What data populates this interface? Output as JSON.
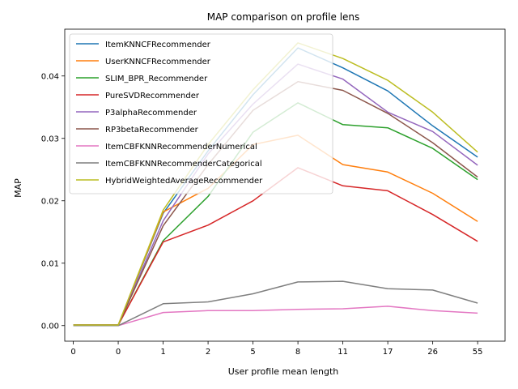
{
  "chart_data": {
    "type": "line",
    "title": "MAP comparison on profile lens",
    "xlabel": "User profile mean length",
    "ylabel": "MAP",
    "categories": [
      "0",
      "0",
      "1",
      "2",
      "5",
      "8",
      "11",
      "17",
      "26",
      "55"
    ],
    "yticks": [
      "0.00",
      "0.01",
      "0.02",
      "0.03",
      "0.04"
    ],
    "ylim": [
      -0.0025,
      0.0475
    ],
    "grid": false,
    "legend_position": "top-left",
    "series": [
      {
        "name": "ItemKNNCFRecommender",
        "color": "#1f77b4",
        "values": [
          0.0001,
          0.0001,
          0.018,
          0.028,
          0.037,
          0.0445,
          0.0413,
          0.0376,
          0.032,
          0.027
        ]
      },
      {
        "name": "UserKNNCFRecommender",
        "color": "#ff7f0e",
        "values": [
          0.0001,
          0.0001,
          0.0182,
          0.022,
          0.029,
          0.0305,
          0.0258,
          0.0246,
          0.0212,
          0.0167
        ]
      },
      {
        "name": "SLIM_BPR_Recommender",
        "color": "#2ca02c",
        "values": [
          0.0001,
          0.0001,
          0.0136,
          0.0207,
          0.031,
          0.0357,
          0.0322,
          0.0317,
          0.0284,
          0.0234
        ]
      },
      {
        "name": "PureSVDRecommender",
        "color": "#d62728",
        "values": [
          0.0001,
          0.0001,
          0.0134,
          0.0161,
          0.02,
          0.0253,
          0.0224,
          0.0216,
          0.0178,
          0.0135
        ]
      },
      {
        "name": "P3alphaRecommender",
        "color": "#9467bd",
        "values": [
          0.0001,
          0.0001,
          0.0168,
          0.0275,
          0.0355,
          0.0419,
          0.0395,
          0.0342,
          0.0311,
          0.0257
        ]
      },
      {
        "name": "RP3betaRecommender",
        "color": "#8c564b",
        "values": [
          0.0001,
          0.0001,
          0.016,
          0.0258,
          0.0345,
          0.0391,
          0.0377,
          0.034,
          0.0293,
          0.0238
        ]
      },
      {
        "name": "ItemCBFKNNRecommenderNumerical",
        "color": "#e377c2",
        "values": [
          0.0,
          0.0,
          0.0021,
          0.0024,
          0.0024,
          0.0026,
          0.0027,
          0.0031,
          0.0024,
          0.002
        ]
      },
      {
        "name": "ItemCBFKNNRecommenderCategorical",
        "color": "#7f7f7f",
        "values": [
          0.0,
          0.0,
          0.0035,
          0.0038,
          0.0051,
          0.007,
          0.0071,
          0.0059,
          0.0057,
          0.0036
        ]
      },
      {
        "name": "HybridWeightedAverageRecommender",
        "color": "#bcbd22",
        "values": [
          0.0001,
          0.0001,
          0.0185,
          0.029,
          0.0378,
          0.0453,
          0.0428,
          0.0393,
          0.0342,
          0.0278
        ]
      }
    ]
  }
}
